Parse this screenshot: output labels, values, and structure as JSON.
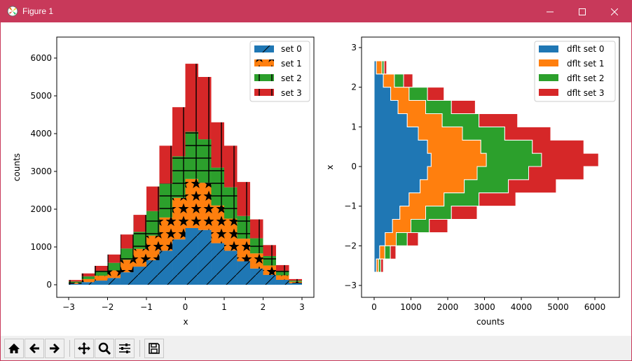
{
  "window": {
    "title": "Figure 1",
    "controls": {
      "minimize": "minimize",
      "maximize": "maximize",
      "close": "close"
    },
    "accent_color": "#c8395a"
  },
  "toolbar": {
    "buttons": [
      {
        "name": "home",
        "icon": "home-icon",
        "tooltip": "Reset original view"
      },
      {
        "name": "back",
        "icon": "arrow-left-icon",
        "tooltip": "Back"
      },
      {
        "name": "forward",
        "icon": "arrow-right-icon",
        "tooltip": "Forward"
      },
      {
        "name": "pan",
        "icon": "move-icon",
        "tooltip": "Pan"
      },
      {
        "name": "zoom",
        "icon": "magnifier-icon",
        "tooltip": "Zoom"
      },
      {
        "name": "configure",
        "icon": "sliders-icon",
        "tooltip": "Configure subplots"
      },
      {
        "name": "save",
        "icon": "floppy-disk-icon",
        "tooltip": "Save"
      }
    ]
  },
  "colors": {
    "set0": "#1f77b4",
    "set1": "#ff7f0e",
    "set2": "#2ca02c",
    "set3": "#d62728"
  },
  "chart_data": [
    {
      "type": "bar",
      "subtype": "stacked-histogram-with-hatches",
      "title": "",
      "xlabel": "x",
      "ylabel": "counts",
      "xlim": [
        -3.3,
        3.3
      ],
      "ylim": [
        -300,
        6600
      ],
      "xticks": [
        "−3",
        "−2",
        "−1",
        "0",
        "1",
        "2",
        "3"
      ],
      "xtick_values": [
        -3,
        -2,
        -1,
        0,
        1,
        2,
        3
      ],
      "yticks": [
        "0",
        "1000",
        "2000",
        "3000",
        "4000",
        "5000",
        "6000"
      ],
      "ytick_values": [
        0,
        1000,
        2000,
        3000,
        4000,
        5000,
        6000
      ],
      "legend": {
        "position": "upper right",
        "entries": [
          "set 0",
          "set 1",
          "set 2",
          "set 3"
        ]
      },
      "hatches": [
        "/",
        "*",
        "+",
        "|"
      ],
      "bin_edges": [
        -3.0,
        -2.667,
        -2.333,
        -2.0,
        -1.667,
        -1.333,
        -1.0,
        -0.667,
        -0.333,
        0.0,
        0.333,
        0.667,
        1.0,
        1.333,
        1.667,
        2.0,
        2.333,
        2.667,
        3.0
      ],
      "series": [
        {
          "name": "set 0",
          "values": [
            25,
            70,
            110,
            180,
            330,
            480,
            650,
            900,
            1200,
            1500,
            1450,
            1100,
            900,
            620,
            430,
            260,
            130,
            40
          ]
        },
        {
          "name": "set 1",
          "values": [
            30,
            80,
            130,
            200,
            330,
            470,
            650,
            880,
            1100,
            1300,
            1250,
            1000,
            850,
            600,
            400,
            250,
            120,
            40
          ]
        },
        {
          "name": "set 2",
          "values": [
            30,
            70,
            130,
            200,
            300,
            450,
            650,
            900,
            1100,
            1250,
            1150,
            1000,
            830,
            600,
            400,
            250,
            120,
            30
          ]
        },
        {
          "name": "set 3",
          "values": [
            40,
            80,
            130,
            220,
            370,
            450,
            650,
            1000,
            1300,
            1800,
            1650,
            1200,
            1100,
            900,
            500,
            290,
            150,
            40
          ]
        }
      ]
    },
    {
      "type": "bar",
      "subtype": "horizontal-stacked-step-histogram",
      "title": "",
      "xlabel": "counts",
      "ylabel": "x",
      "xlim": [
        -300,
        6600
      ],
      "ylim": [
        -3.3,
        3.3
      ],
      "xticks": [
        "0",
        "1000",
        "2000",
        "3000",
        "4000",
        "5000",
        "6000"
      ],
      "xtick_values": [
        0,
        1000,
        2000,
        3000,
        4000,
        5000,
        6000
      ],
      "yticks": [
        "−3",
        "−2",
        "−1",
        "0",
        "1",
        "2",
        "3"
      ],
      "ytick_values": [
        -3,
        -2,
        -1,
        0,
        1,
        2,
        3
      ],
      "legend": {
        "position": "upper right",
        "entries": [
          "dflt set 0",
          "dflt set 1",
          "dflt set 2",
          "dflt set 3"
        ]
      },
      "bin_edges": [
        -3.0,
        -2.667,
        -2.333,
        -2.0,
        -1.667,
        -1.333,
        -1.0,
        -0.667,
        -0.333,
        0.0,
        0.333,
        0.667,
        1.0,
        1.333,
        1.667,
        2.0,
        2.333,
        2.667,
        3.0
      ],
      "series": [
        {
          "name": "dflt set 0",
          "values": [
            10,
            60,
            150,
            300,
            500,
            700,
            950,
            1250,
            1450,
            1550,
            1450,
            1200,
            900,
            650,
            450,
            250,
            60,
            10
          ]
        },
        {
          "name": "dflt set 1",
          "values": [
            0,
            60,
            140,
            300,
            500,
            700,
            950,
            1200,
            1350,
            1500,
            1450,
            1200,
            950,
            750,
            500,
            300,
            150,
            0
          ]
        },
        {
          "name": "dflt set 2",
          "values": [
            10,
            60,
            150,
            300,
            500,
            700,
            950,
            1200,
            1400,
            1500,
            1400,
            1150,
            1000,
            700,
            500,
            250,
            60,
            10
          ]
        },
        {
          "name": "dflt set 3",
          "values": [
            10,
            70,
            150,
            300,
            500,
            700,
            1000,
            1300,
            1500,
            1550,
            1400,
            1250,
            1050,
            650,
            450,
            250,
            70,
            10
          ]
        }
      ]
    }
  ]
}
